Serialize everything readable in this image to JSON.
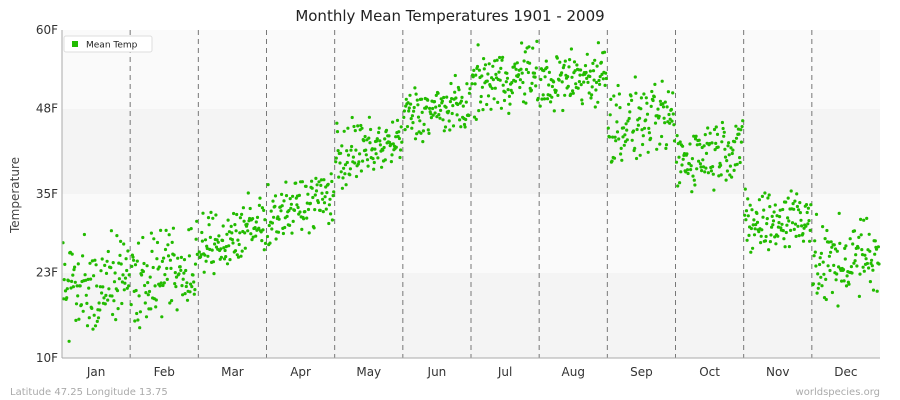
{
  "chart_data": {
    "type": "scatter",
    "title": "Monthly Mean Temperatures 1901 - 2009",
    "ylabel": "Temperature",
    "xlabel": "",
    "ylim": [
      10,
      60
    ],
    "y_ticks": [
      {
        "value": 10,
        "label": "10F"
      },
      {
        "value": 23,
        "label": "23F"
      },
      {
        "value": 35,
        "label": "35F"
      },
      {
        "value": 48,
        "label": "48F"
      },
      {
        "value": 60,
        "label": "60F"
      }
    ],
    "categories": [
      "Jan",
      "Feb",
      "Mar",
      "Apr",
      "May",
      "Jun",
      "Jul",
      "Aug",
      "Sep",
      "Oct",
      "Nov",
      "Dec"
    ],
    "legend": {
      "position": "top-left",
      "entries": [
        "Mean Temp"
      ]
    },
    "grid": {
      "horizontal_bands": true,
      "vertical_month_dividers": "dashed"
    },
    "series": [
      {
        "name": "Mean Temp",
        "color": "#22bb00",
        "years": [
          1901,
          2009
        ],
        "points_per_month": 109,
        "monthly_ranges": [
          {
            "month": "Jan",
            "start": [
              13,
              30
            ],
            "end": [
              14,
              30
            ]
          },
          {
            "month": "Feb",
            "start": [
              14,
              30
            ],
            "end": [
              16,
              31
            ]
          },
          {
            "month": "Mar",
            "start": [
              21,
              32
            ],
            "end": [
              24,
              37
            ]
          },
          {
            "month": "Apr",
            "start": [
              27,
              36
            ],
            "end": [
              30,
              40
            ]
          },
          {
            "month": "May",
            "start": [
              34,
              47
            ],
            "end": [
              39,
              47
            ]
          },
          {
            "month": "Jun",
            "start": [
              42,
              52
            ],
            "end": [
              44,
              53
            ]
          },
          {
            "month": "Jul",
            "start": [
              46,
              57
            ],
            "end": [
              48,
              59
            ]
          },
          {
            "month": "Aug",
            "start": [
              46,
              57
            ],
            "end": [
              48,
              59
            ]
          },
          {
            "month": "Sep",
            "start": [
              38,
              53
            ],
            "end": [
              41,
              52
            ]
          },
          {
            "month": "Oct",
            "start": [
              34,
              46
            ],
            "end": [
              37,
              49
            ]
          },
          {
            "month": "Nov",
            "start": [
              24,
              36
            ],
            "end": [
              26,
              38
            ]
          },
          {
            "month": "Dec",
            "start": [
              16,
              31
            ],
            "end": [
              19,
              33
            ]
          }
        ]
      }
    ]
  },
  "footer": {
    "location": "Latitude 47.25 Longitude 13.75",
    "source": "worldspecies.org"
  }
}
